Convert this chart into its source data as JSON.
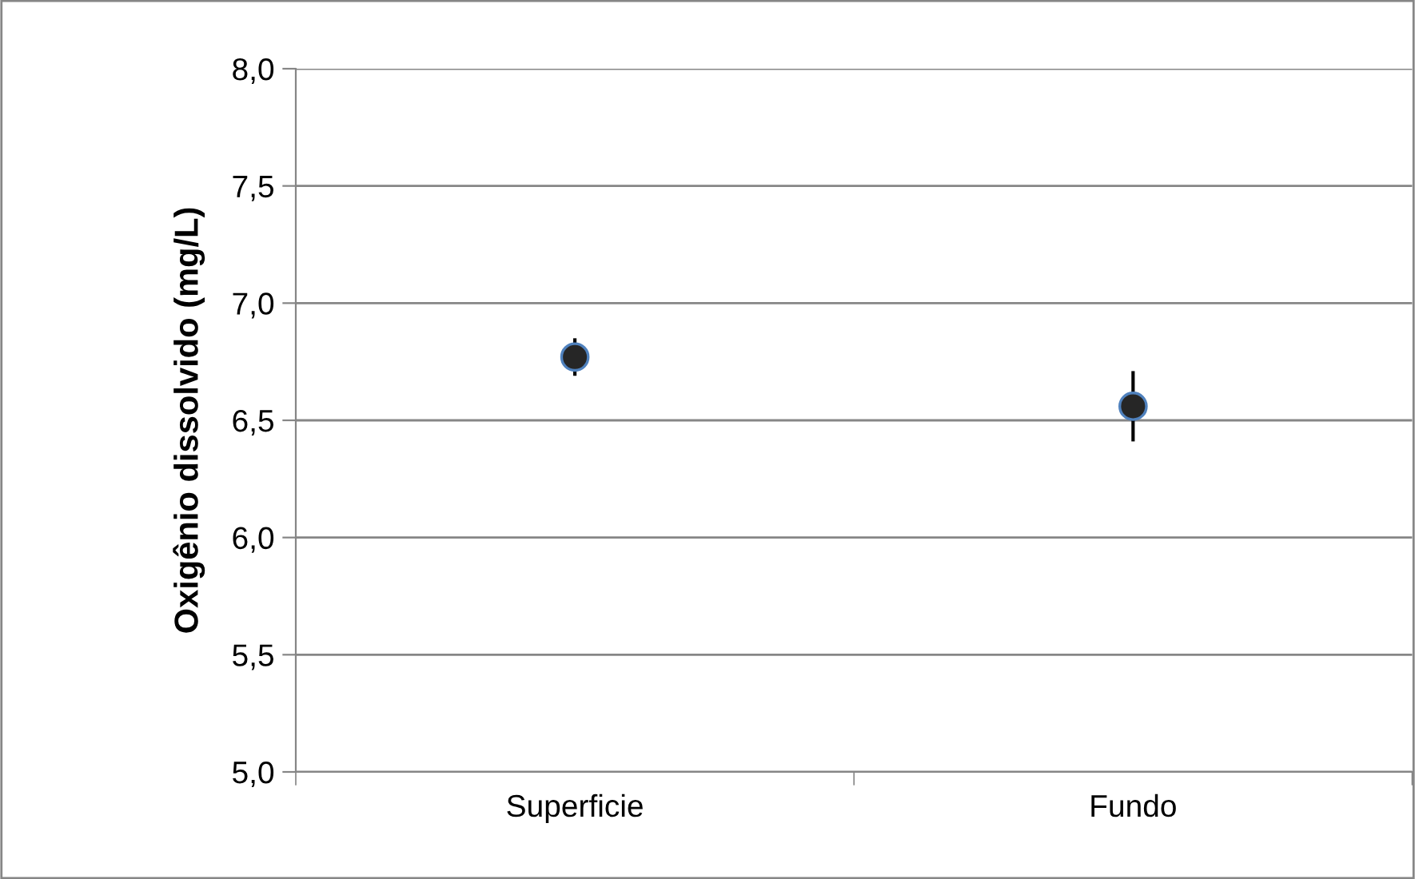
{
  "chart_data": {
    "type": "scatter",
    "ylabel": "Oxigênio dissolvido (mg/L)",
    "categories": [
      "Superficie",
      "Fundo"
    ],
    "series": [
      {
        "color": "#262626",
        "values": [
          6.77,
          6.56
        ],
        "errors": [
          0.08,
          0.15
        ]
      }
    ],
    "ylim": [
      5.0,
      8.0
    ],
    "yticks": [
      {
        "value": 5.0,
        "label": "5,0"
      },
      {
        "value": 5.5,
        "label": "5,5"
      },
      {
        "value": 6.0,
        "label": "6,0"
      },
      {
        "value": 6.5,
        "label": "6,5"
      },
      {
        "value": 7.0,
        "label": "7,0"
      },
      {
        "value": 7.5,
        "label": "7,5"
      },
      {
        "value": 8.0,
        "label": "8,0"
      }
    ],
    "grid": "y",
    "marker": "circle",
    "legend": false
  }
}
